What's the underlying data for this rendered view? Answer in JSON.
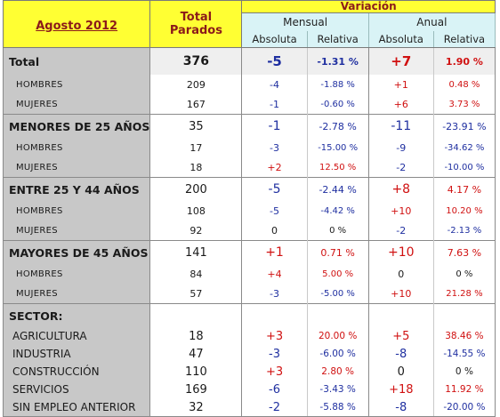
{
  "header": {
    "period": "Agosto 2012",
    "total_line1": "Total",
    "total_line2": "Parados",
    "variacion": "Variación",
    "mensual": "Mensual",
    "anual": "Anual",
    "absoluta": "Absoluta",
    "relativa": "Relativa"
  },
  "colors": {
    "positive": "#d01010",
    "negative": "#1f2fa0",
    "header_bg": "#ffff33",
    "subheader_bg": "#d9f3f6",
    "label_bg": "#c8c8c8"
  },
  "rows": {
    "total": {
      "label": "Total",
      "total": "376",
      "m_abs": "-5",
      "m_rel": "-1.31 %",
      "a_abs": "+7",
      "a_rel": "1.90 %"
    },
    "total_hombres": {
      "label": "HOMBRES",
      "total": "209",
      "m_abs": "-4",
      "m_rel": "-1.88 %",
      "a_abs": "+1",
      "a_rel": "0.48 %"
    },
    "total_mujeres": {
      "label": "MUJERES",
      "total": "167",
      "m_abs": "-1",
      "m_rel": "-0.60 %",
      "a_abs": "+6",
      "a_rel": "3.73 %"
    },
    "menores25": {
      "label": "MENORES DE 25 AÑOS:",
      "total": "35",
      "m_abs": "-1",
      "m_rel": "-2.78 %",
      "a_abs": "-11",
      "a_rel": "-23.91 %"
    },
    "menores25_hombres": {
      "label": "HOMBRES",
      "total": "17",
      "m_abs": "-3",
      "m_rel": "-15.00 %",
      "a_abs": "-9",
      "a_rel": "-34.62 %"
    },
    "menores25_mujeres": {
      "label": "MUJERES",
      "total": "18",
      "m_abs": "+2",
      "m_rel": "12.50 %",
      "a_abs": "-2",
      "a_rel": "-10.00 %"
    },
    "entre25_44": {
      "label": "ENTRE 25 Y 44 AÑOS",
      "total": "200",
      "m_abs": "-5",
      "m_rel": "-2.44 %",
      "a_abs": "+8",
      "a_rel": "4.17 %"
    },
    "entre_hombres": {
      "label": "HOMBRES",
      "total": "108",
      "m_abs": "-5",
      "m_rel": "-4.42 %",
      "a_abs": "+10",
      "a_rel": "10.20 %"
    },
    "entre_mujeres": {
      "label": "MUJERES",
      "total": "92",
      "m_abs": "0",
      "m_rel": "0 %",
      "a_abs": "-2",
      "a_rel": "-2.13 %"
    },
    "mayores45": {
      "label": "MAYORES DE 45 AÑOS",
      "total": "141",
      "m_abs": "+1",
      "m_rel": "0.71 %",
      "a_abs": "+10",
      "a_rel": "7.63 %"
    },
    "mayores_hombres": {
      "label": "HOMBRES",
      "total": "84",
      "m_abs": "+4",
      "m_rel": "5.00 %",
      "a_abs": "0",
      "a_rel": "0 %"
    },
    "mayores_mujeres": {
      "label": "MUJERES",
      "total": "57",
      "m_abs": "-3",
      "m_rel": "-5.00 %",
      "a_abs": "+10",
      "a_rel": "21.28 %"
    },
    "sector": {
      "label": "SECTOR:"
    },
    "agricultura": {
      "label": "AGRICULTURA",
      "total": "18",
      "m_abs": "+3",
      "m_rel": "20.00 %",
      "a_abs": "+5",
      "a_rel": "38.46 %"
    },
    "industria": {
      "label": "INDUSTRIA",
      "total": "47",
      "m_abs": "-3",
      "m_rel": "-6.00 %",
      "a_abs": "-8",
      "a_rel": "-14.55 %"
    },
    "construccion": {
      "label": "CONSTRUCCIÓN",
      "total": "110",
      "m_abs": "+3",
      "m_rel": "2.80 %",
      "a_abs": "0",
      "a_rel": "0 %"
    },
    "servicios": {
      "label": "SERVICIOS",
      "total": "169",
      "m_abs": "-6",
      "m_rel": "-3.43 %",
      "a_abs": "+18",
      "a_rel": "11.92 %"
    },
    "sin_empleo": {
      "label": "SIN EMPLEO ANTERIOR",
      "total": "32",
      "m_abs": "-2",
      "m_rel": "-5.88 %",
      "a_abs": "-8",
      "a_rel": "-20.00 %"
    }
  }
}
